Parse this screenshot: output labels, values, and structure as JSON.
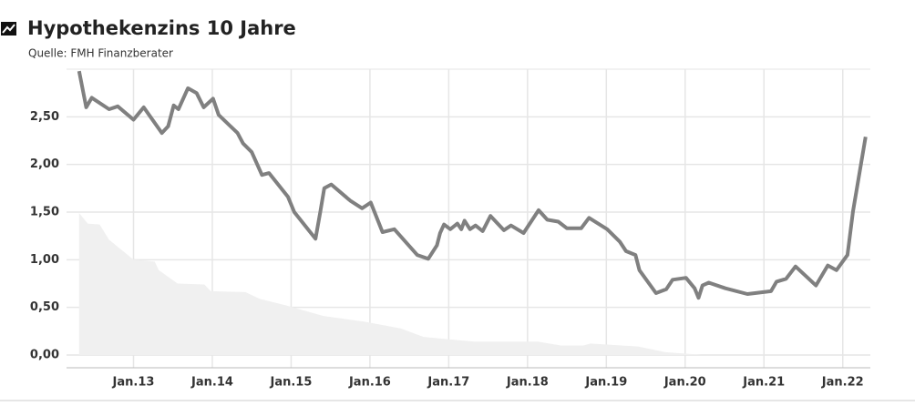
{
  "chart_data": {
    "type": "line",
    "title": "Hypothekenzins 10 Jahre",
    "subtitle": "Quelle: FMH Finanzberater",
    "series": [
      {
        "kind": "area",
        "color": "#f0f0f0",
        "x": [
          2012.31,
          2012.42,
          2012.57,
          2012.69,
          2013.0,
          2013.27,
          2013.32,
          2013.56,
          2013.9,
          2013.98,
          2014.42,
          2014.6,
          2014.94,
          2015.41,
          2015.93,
          2016.39,
          2016.68,
          2017.32,
          2018.13,
          2018.42,
          2018.71,
          2018.8,
          2019.4,
          2019.75,
          2020.09,
          2020.21
        ],
        "values": [
          1.49,
          1.38,
          1.37,
          1.21,
          1.0,
          0.98,
          0.89,
          0.75,
          0.74,
          0.67,
          0.66,
          0.59,
          0.52,
          0.41,
          0.35,
          0.28,
          0.19,
          0.14,
          0.14,
          0.1,
          0.1,
          0.12,
          0.09,
          0.03,
          0.01,
          0
        ]
      },
      {
        "kind": "line",
        "color": "#808080",
        "x": [
          2012.31,
          2012.4,
          2012.47,
          2012.69,
          2012.8,
          2013.0,
          2013.13,
          2013.36,
          2013.44,
          2013.51,
          2013.57,
          2013.69,
          2013.8,
          2013.89,
          2014.01,
          2014.08,
          2014.32,
          2014.39,
          2014.5,
          2014.63,
          2014.72,
          2014.96,
          2015.04,
          2015.31,
          2015.37,
          2015.42,
          2015.51,
          2015.75,
          2015.9,
          2016.01,
          2016.16,
          2016.31,
          2016.45,
          2016.6,
          2016.74,
          2016.85,
          2016.89,
          2016.94,
          2017.02,
          2017.11,
          2017.16,
          2017.2,
          2017.27,
          2017.34,
          2017.43,
          2017.53,
          2017.7,
          2017.79,
          2017.95,
          2018.14,
          2018.25,
          2018.39,
          2018.5,
          2018.68,
          2018.78,
          2019.01,
          2019.17,
          2019.25,
          2019.37,
          2019.42,
          2019.63,
          2019.76,
          2019.84,
          2020.01,
          2020.12,
          2020.17,
          2020.22,
          2020.3,
          2020.51,
          2020.79,
          2021.09,
          2021.16,
          2021.28,
          2021.4,
          2021.66,
          2021.81,
          2021.92,
          2022.06,
          2022.13,
          2022.29
        ],
        "values": [
          2.98,
          2.6,
          2.7,
          2.58,
          2.61,
          2.47,
          2.6,
          2.33,
          2.4,
          2.62,
          2.58,
          2.8,
          2.75,
          2.6,
          2.69,
          2.52,
          2.33,
          2.22,
          2.13,
          1.89,
          1.91,
          1.66,
          1.5,
          1.22,
          1.5,
          1.75,
          1.79,
          1.62,
          1.54,
          1.6,
          1.29,
          1.32,
          1.19,
          1.05,
          1.01,
          1.15,
          1.28,
          1.37,
          1.32,
          1.38,
          1.32,
          1.41,
          1.32,
          1.36,
          1.3,
          1.46,
          1.31,
          1.36,
          1.28,
          1.52,
          1.42,
          1.4,
          1.33,
          1.33,
          1.44,
          1.32,
          1.19,
          1.09,
          1.05,
          0.89,
          0.65,
          0.69,
          0.79,
          0.81,
          0.7,
          0.6,
          0.73,
          0.76,
          0.7,
          0.64,
          0.67,
          0.77,
          0.8,
          0.93,
          0.73,
          0.94,
          0.89,
          1.05,
          1.51,
          2.29
        ]
      }
    ],
    "xlim": [
      2012.15,
      2022.35
    ],
    "xticks": [
      {
        "value": 2013,
        "label": "Jan.13"
      },
      {
        "value": 2014,
        "label": "Jan.14"
      },
      {
        "value": 2015,
        "label": "Jan.15"
      },
      {
        "value": 2016,
        "label": "Jan.16"
      },
      {
        "value": 2017,
        "label": "Jan.17"
      },
      {
        "value": 2018,
        "label": "Jan.18"
      },
      {
        "value": 2019,
        "label": "Jan.19"
      },
      {
        "value": 2020,
        "label": "Jan.20"
      },
      {
        "value": 2021,
        "label": "Jan.21"
      },
      {
        "value": 2022,
        "label": "Jan.22"
      }
    ],
    "ylim": [
      0,
      3
    ],
    "yticks": [
      {
        "value": 0,
        "label": "0,00"
      },
      {
        "value": 0.5,
        "label": "0,50"
      },
      {
        "value": 1,
        "label": "1,00"
      },
      {
        "value": 1.5,
        "label": "1,50"
      },
      {
        "value": 2,
        "label": "2,00"
      },
      {
        "value": 2.5,
        "label": "2,50"
      }
    ],
    "grid": true
  }
}
